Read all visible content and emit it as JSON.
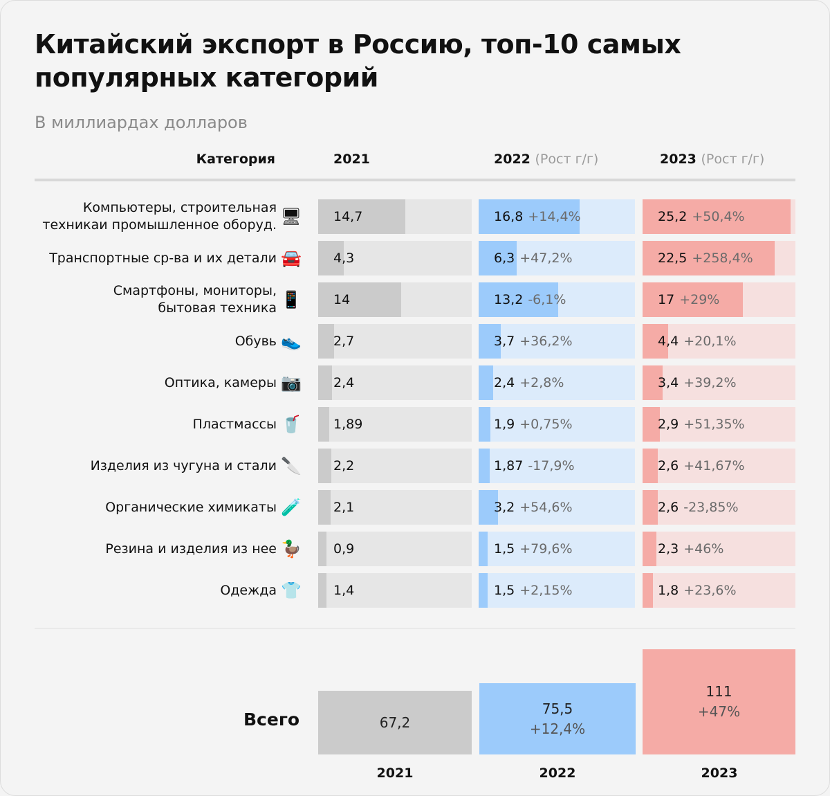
{
  "title_line1": "Китайский экспорт в Россию, топ-10 самых",
  "title_line2": "популярных категорий",
  "subtitle": "В миллиардах долларов",
  "headers": {
    "category": "Категория",
    "y2021": "2021",
    "y2022": "2022",
    "y2023": "2023",
    "growth_note": "(Рост г/г)"
  },
  "colors": {
    "y2021_bar": "#cbcbcb",
    "y2021_track": "#e6e6e6",
    "y2022_bar": "#9ccbfb",
    "y2022_track": "#dcebfb",
    "y2023_bar": "#f5aba6",
    "y2023_track": "#f6e0df"
  },
  "chart_data": {
    "type": "table",
    "title": "Китайский экспорт в Россию, топ-10 самых популярных категорий",
    "subtitle": "В миллиардах долларов",
    "max_value": 26,
    "rows": [
      {
        "category": "Компьютеры, строительная техникаи промышленное оборуд.",
        "icon": "computer-icon",
        "glyph": "🖥",
        "v2021": "14,7",
        "v2022": "16,8",
        "g2022": "+14,4%",
        "v2023": "25,2",
        "g2023": "+50,4%",
        "n2021": 14.7,
        "n2022": 16.8,
        "n2023": 25.2
      },
      {
        "category": "Транспортные ср-ва и их детали",
        "icon": "car-icon",
        "glyph": "🚘",
        "v2021": "4,3",
        "v2022": "6,3",
        "g2022": "+47,2%",
        "v2023": "22,5",
        "g2023": "+258,4%",
        "n2021": 4.3,
        "n2022": 6.3,
        "n2023": 22.5
      },
      {
        "category": "Смартфоны, мониторы, бытовая техника",
        "icon": "smartphone-icon",
        "glyph": "📱",
        "v2021": "14",
        "v2022": "13,2",
        "g2022": "-6,1%",
        "v2023": "17",
        "g2023": "+29%",
        "n2021": 14,
        "n2022": 13.2,
        "n2023": 17
      },
      {
        "category": "Обувь",
        "icon": "sneaker-icon",
        "glyph": "👟",
        "v2021": "2,7",
        "v2022": "3,7",
        "g2022": "+36,2%",
        "v2023": "4,4",
        "g2023": "+20,1%",
        "n2021": 2.7,
        "n2022": 3.7,
        "n2023": 4.4
      },
      {
        "category": "Оптика, камеры",
        "icon": "camera-icon",
        "glyph": "📷",
        "v2021": "2,4",
        "v2022": "2,4",
        "g2022": "+2,8%",
        "v2023": "3,4",
        "g2023": "+39,2%",
        "n2021": 2.4,
        "n2022": 2.4,
        "n2023": 3.4
      },
      {
        "category": "Пластмассы",
        "icon": "plastic-cup-icon",
        "glyph": "🥤",
        "v2021": "1,89",
        "v2022": "1,9",
        "g2022": "+0,75%",
        "v2023": "2,9",
        "g2023": "+51,35%",
        "n2021": 1.89,
        "n2022": 1.9,
        "n2023": 2.9
      },
      {
        "category": "Изделия из чугуна и стали",
        "icon": "knife-icon",
        "glyph": "🔪",
        "v2021": "2,2",
        "v2022": "1,87",
        "g2022": "-17,9%",
        "v2023": "2,6",
        "g2023": "+41,67%",
        "n2021": 2.2,
        "n2022": 1.87,
        "n2023": 2.6
      },
      {
        "category": "Органические химикаты",
        "icon": "test-tube-icon",
        "glyph": "🧪",
        "v2021": "2,1",
        "v2022": "3,2",
        "g2022": "+54,6%",
        "v2023": "2,6",
        "g2023": "-23,85%",
        "n2021": 2.1,
        "n2022": 3.2,
        "n2023": 2.6
      },
      {
        "category": "Резина и изделия из нее",
        "icon": "rubber-duck-icon",
        "glyph": "🦆",
        "v2021": "0,9",
        "v2022": "1,5",
        "g2022": "+79,6%",
        "v2023": "2,3",
        "g2023": "+46%",
        "n2021": 0.9,
        "n2022": 1.5,
        "n2023": 2.3
      },
      {
        "category": "Одежда",
        "icon": "shirt-icon",
        "glyph": "👕",
        "v2021": "1,4",
        "v2022": "1,5",
        "g2022": "+2,15%",
        "v2023": "1,8",
        "g2023": "+23,6%",
        "n2021": 1.4,
        "n2022": 1.5,
        "n2023": 1.8
      }
    ],
    "total": {
      "label": "Всего",
      "years": [
        "2021",
        "2022",
        "2023"
      ],
      "values": [
        "67,2",
        "75,5",
        "111"
      ],
      "numbers": [
        67.2,
        75.5,
        111
      ],
      "growth": [
        "",
        "+12,4%",
        "+47%"
      ]
    }
  }
}
